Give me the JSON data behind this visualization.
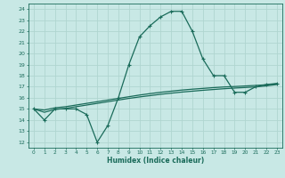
{
  "title": "",
  "xlabel": "Humidex (Indice chaleur)",
  "xlim": [
    -0.5,
    23.5
  ],
  "ylim": [
    11.5,
    24.5
  ],
  "xticks": [
    0,
    1,
    2,
    3,
    4,
    5,
    6,
    7,
    8,
    9,
    10,
    11,
    12,
    13,
    14,
    15,
    16,
    17,
    18,
    19,
    20,
    21,
    22,
    23
  ],
  "yticks": [
    12,
    13,
    14,
    15,
    16,
    17,
    18,
    19,
    20,
    21,
    22,
    23,
    24
  ],
  "bg_color": "#c8e8e5",
  "grid_color": "#b0d5d0",
  "line_color": "#1a6b5a",
  "line1_x": [
    0,
    1,
    2,
    3,
    4,
    5,
    6,
    7,
    8,
    9,
    10,
    11,
    12,
    13,
    14,
    15,
    16,
    17,
    18,
    19,
    20,
    21,
    22,
    23
  ],
  "line1_y": [
    15,
    14,
    15,
    15,
    15,
    14.5,
    12,
    13.5,
    16,
    19,
    21.5,
    22.5,
    23.3,
    23.8,
    23.8,
    22,
    19.5,
    18,
    18,
    16.5,
    16.5,
    17,
    17.2,
    17.3
  ],
  "line2_x": [
    0,
    1,
    2,
    3,
    4,
    5,
    6,
    7,
    8,
    9,
    10,
    11,
    12,
    13,
    14,
    15,
    16,
    17,
    18,
    19,
    20,
    21,
    22,
    23
  ],
  "line2_y": [
    15,
    14.9,
    15.1,
    15.2,
    15.35,
    15.5,
    15.65,
    15.8,
    15.95,
    16.1,
    16.25,
    16.38,
    16.5,
    16.6,
    16.7,
    16.78,
    16.85,
    16.92,
    16.98,
    17.02,
    17.07,
    17.12,
    17.18,
    17.25
  ],
  "line3_x": [
    0,
    1,
    2,
    3,
    4,
    5,
    6,
    7,
    8,
    9,
    10,
    11,
    12,
    13,
    14,
    15,
    16,
    17,
    18,
    19,
    20,
    21,
    22,
    23
  ],
  "line3_y": [
    15,
    14.7,
    14.95,
    15.05,
    15.2,
    15.35,
    15.5,
    15.65,
    15.8,
    15.95,
    16.08,
    16.2,
    16.32,
    16.42,
    16.52,
    16.6,
    16.68,
    16.75,
    16.82,
    16.88,
    16.93,
    16.98,
    17.08,
    17.2
  ]
}
